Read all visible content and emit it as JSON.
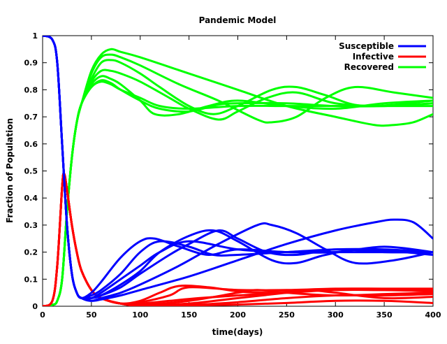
{
  "chart_data": {
    "type": "line",
    "title": "Pandemic Model",
    "xlabel": "time(days)",
    "ylabel": "Fraction of Population",
    "xlim": [
      0,
      400
    ],
    "ylim": [
      0,
      1
    ],
    "xticks": [
      0,
      50,
      100,
      150,
      200,
      250,
      300,
      350,
      400
    ],
    "yticks": [
      0,
      0.1,
      0.2,
      0.3,
      0.4,
      0.5,
      0.6,
      0.7,
      0.8,
      0.9,
      1
    ],
    "grid": false,
    "legend_position": "top-right",
    "legend": [
      {
        "label": "Susceptible",
        "color": "#0000ff"
      },
      {
        "label": "Infective",
        "color": "#ff0000"
      },
      {
        "label": "Recovered",
        "color": "#00ff00"
      }
    ],
    "series": [
      {
        "group": "Susceptible",
        "color": "#0000ff",
        "x": [
          0,
          10,
          15,
          20,
          25,
          30,
          35,
          40,
          50,
          60,
          80,
          100,
          120,
          150,
          200,
          250,
          300,
          350,
          400
        ],
        "y": [
          1.0,
          0.985,
          0.9,
          0.6,
          0.3,
          0.12,
          0.05,
          0.03,
          0.03,
          0.05,
          0.1,
          0.15,
          0.2,
          0.24,
          0.21,
          0.2,
          0.2,
          0.2,
          0.2
        ]
      },
      {
        "group": "Susceptible",
        "color": "#0000ff",
        "x": [
          0,
          10,
          15,
          20,
          25,
          30,
          35,
          40,
          50,
          60,
          80,
          100,
          120,
          150,
          175,
          200,
          250,
          300,
          350,
          400
        ],
        "y": [
          1.0,
          0.985,
          0.9,
          0.6,
          0.3,
          0.12,
          0.05,
          0.03,
          0.04,
          0.06,
          0.12,
          0.2,
          0.24,
          0.22,
          0.19,
          0.19,
          0.2,
          0.21,
          0.21,
          0.2
        ]
      },
      {
        "group": "Susceptible",
        "color": "#0000ff",
        "x": [
          0,
          10,
          15,
          20,
          25,
          30,
          35,
          40,
          50,
          60,
          80,
          100,
          115,
          140,
          170,
          200,
          250,
          300,
          350,
          400
        ],
        "y": [
          1.0,
          0.985,
          0.9,
          0.6,
          0.3,
          0.12,
          0.05,
          0.03,
          0.05,
          0.09,
          0.18,
          0.24,
          0.25,
          0.22,
          0.19,
          0.21,
          0.2,
          0.2,
          0.22,
          0.2
        ]
      },
      {
        "group": "Susceptible",
        "color": "#0000ff",
        "x": [
          0,
          10,
          15,
          20,
          25,
          30,
          35,
          40,
          50,
          60,
          80,
          100,
          130,
          150,
          180,
          200,
          230,
          260,
          300,
          350,
          400
        ],
        "y": [
          1.0,
          0.985,
          0.9,
          0.6,
          0.3,
          0.12,
          0.05,
          0.03,
          0.03,
          0.04,
          0.07,
          0.12,
          0.19,
          0.23,
          0.28,
          0.25,
          0.2,
          0.19,
          0.21,
          0.2,
          0.2
        ]
      },
      {
        "group": "Susceptible",
        "color": "#0000ff",
        "x": [
          0,
          10,
          15,
          20,
          25,
          30,
          35,
          40,
          50,
          60,
          80,
          100,
          120,
          150,
          175,
          200,
          235,
          260,
          290,
          330,
          400
        ],
        "y": [
          1.0,
          0.985,
          0.9,
          0.6,
          0.3,
          0.12,
          0.05,
          0.03,
          0.03,
          0.04,
          0.08,
          0.13,
          0.2,
          0.26,
          0.28,
          0.24,
          0.17,
          0.16,
          0.19,
          0.21,
          0.19
        ]
      },
      {
        "group": "Susceptible",
        "color": "#0000ff",
        "x": [
          0,
          10,
          15,
          20,
          25,
          30,
          35,
          40,
          50,
          60,
          80,
          100,
          140,
          180,
          220,
          235,
          260,
          290,
          320,
          360,
          400
        ],
        "y": [
          1.0,
          0.985,
          0.9,
          0.6,
          0.3,
          0.12,
          0.05,
          0.03,
          0.02,
          0.03,
          0.05,
          0.08,
          0.15,
          0.23,
          0.3,
          0.3,
          0.27,
          0.21,
          0.16,
          0.17,
          0.2
        ]
      },
      {
        "group": "Susceptible",
        "color": "#0000ff",
        "x": [
          0,
          10,
          15,
          20,
          25,
          30,
          35,
          40,
          50,
          60,
          80,
          100,
          150,
          200,
          250,
          300,
          340,
          360,
          380,
          400
        ],
        "y": [
          1.0,
          0.985,
          0.9,
          0.6,
          0.3,
          0.12,
          0.05,
          0.03,
          0.02,
          0.025,
          0.04,
          0.06,
          0.11,
          0.17,
          0.23,
          0.28,
          0.31,
          0.32,
          0.31,
          0.25
        ]
      },
      {
        "group": "Infective",
        "color": "#ff0000",
        "x": [
          0,
          10,
          15,
          20,
          22,
          25,
          30,
          35,
          40,
          50,
          60,
          80,
          100,
          130,
          160,
          200,
          250,
          300,
          350,
          400
        ],
        "y": [
          0.0,
          0.02,
          0.15,
          0.44,
          0.49,
          0.43,
          0.3,
          0.2,
          0.13,
          0.06,
          0.03,
          0.01,
          0.01,
          0.02,
          0.03,
          0.04,
          0.05,
          0.06,
          0.06,
          0.06
        ]
      },
      {
        "group": "Infective",
        "color": "#ff0000",
        "x": [
          0,
          10,
          15,
          20,
          22,
          25,
          30,
          35,
          40,
          50,
          60,
          80,
          100,
          130,
          150,
          200,
          250,
          300,
          350,
          400
        ],
        "y": [
          0.0,
          0.02,
          0.15,
          0.44,
          0.49,
          0.43,
          0.3,
          0.2,
          0.13,
          0.06,
          0.03,
          0.01,
          0.015,
          0.04,
          0.07,
          0.06,
          0.06,
          0.065,
          0.065,
          0.065
        ]
      },
      {
        "group": "Infective",
        "color": "#ff0000",
        "x": [
          0,
          10,
          15,
          20,
          22,
          25,
          30,
          35,
          40,
          50,
          60,
          80,
          100,
          120,
          140,
          170,
          200,
          230,
          260,
          300,
          350,
          400
        ],
        "y": [
          0.0,
          0.02,
          0.15,
          0.44,
          0.49,
          0.43,
          0.3,
          0.2,
          0.13,
          0.06,
          0.03,
          0.01,
          0.02,
          0.05,
          0.075,
          0.07,
          0.055,
          0.05,
          0.055,
          0.06,
          0.06,
          0.055
        ]
      },
      {
        "group": "Infective",
        "color": "#ff0000",
        "x": [
          0,
          10,
          15,
          20,
          22,
          25,
          30,
          35,
          40,
          50,
          60,
          80,
          100,
          150,
          200,
          220,
          250,
          300,
          350,
          400
        ],
        "y": [
          0.0,
          0.02,
          0.15,
          0.44,
          0.49,
          0.43,
          0.3,
          0.2,
          0.13,
          0.06,
          0.03,
          0.01,
          0.005,
          0.02,
          0.05,
          0.06,
          0.05,
          0.04,
          0.045,
          0.05
        ]
      },
      {
        "group": "Infective",
        "color": "#ff0000",
        "x": [
          0,
          10,
          15,
          20,
          22,
          25,
          30,
          35,
          40,
          50,
          60,
          80,
          100,
          150,
          200,
          250,
          270,
          300,
          350,
          400
        ],
        "y": [
          0.0,
          0.02,
          0.15,
          0.44,
          0.49,
          0.43,
          0.3,
          0.2,
          0.13,
          0.06,
          0.03,
          0.01,
          0.004,
          0.01,
          0.03,
          0.05,
          0.06,
          0.05,
          0.03,
          0.035
        ]
      },
      {
        "group": "Infective",
        "color": "#ff0000",
        "x": [
          0,
          10,
          15,
          20,
          22,
          25,
          30,
          35,
          40,
          50,
          60,
          80,
          100,
          150,
          200,
          250,
          300,
          350,
          400
        ],
        "y": [
          0.0,
          0.02,
          0.15,
          0.44,
          0.49,
          0.43,
          0.3,
          0.2,
          0.13,
          0.06,
          0.03,
          0.01,
          0.003,
          0.005,
          0.015,
          0.03,
          0.04,
          0.04,
          0.045
        ]
      },
      {
        "group": "Infective",
        "color": "#ff0000",
        "x": [
          0,
          10,
          15,
          20,
          22,
          25,
          30,
          35,
          40,
          50,
          60,
          80,
          100,
          150,
          200,
          250,
          300,
          350,
          400
        ],
        "y": [
          0.0,
          0.02,
          0.15,
          0.44,
          0.49,
          0.43,
          0.3,
          0.2,
          0.13,
          0.06,
          0.03,
          0.01,
          0.002,
          0.003,
          0.006,
          0.012,
          0.02,
          0.02,
          0.012
        ]
      },
      {
        "group": "Recovered",
        "color": "#00ff00",
        "x": [
          0,
          10,
          15,
          20,
          25,
          30,
          35,
          40,
          50,
          60,
          70,
          80,
          100,
          120,
          150,
          200,
          250,
          300,
          350,
          400
        ],
        "y": [
          0.0,
          0.005,
          0.02,
          0.1,
          0.35,
          0.55,
          0.68,
          0.75,
          0.81,
          0.83,
          0.82,
          0.8,
          0.77,
          0.74,
          0.73,
          0.74,
          0.74,
          0.74,
          0.74,
          0.74
        ]
      },
      {
        "group": "Recovered",
        "color": "#00ff00",
        "x": [
          0,
          10,
          15,
          20,
          25,
          30,
          35,
          40,
          50,
          60,
          70,
          80,
          100,
          120,
          150,
          180,
          200,
          250,
          300,
          350,
          400
        ],
        "y": [
          0.0,
          0.005,
          0.02,
          0.1,
          0.35,
          0.55,
          0.68,
          0.75,
          0.81,
          0.835,
          0.825,
          0.8,
          0.76,
          0.73,
          0.72,
          0.745,
          0.75,
          0.75,
          0.74,
          0.74,
          0.75
        ]
      },
      {
        "group": "Recovered",
        "color": "#00ff00",
        "x": [
          0,
          10,
          15,
          20,
          25,
          30,
          35,
          40,
          50,
          60,
          70,
          80,
          100,
          115,
          140,
          170,
          200,
          250,
          300,
          350,
          400
        ],
        "y": [
          0.0,
          0.005,
          0.02,
          0.1,
          0.35,
          0.55,
          0.68,
          0.75,
          0.82,
          0.85,
          0.84,
          0.82,
          0.76,
          0.71,
          0.71,
          0.74,
          0.76,
          0.74,
          0.73,
          0.75,
          0.76
        ]
      },
      {
        "group": "Recovered",
        "color": "#00ff00",
        "x": [
          0,
          10,
          15,
          20,
          25,
          30,
          35,
          40,
          50,
          60,
          70,
          80,
          100,
          130,
          150,
          180,
          200,
          230,
          260,
          300,
          350,
          400
        ],
        "y": [
          0.0,
          0.005,
          0.02,
          0.1,
          0.35,
          0.55,
          0.68,
          0.75,
          0.83,
          0.87,
          0.87,
          0.86,
          0.83,
          0.77,
          0.73,
          0.69,
          0.72,
          0.77,
          0.79,
          0.75,
          0.74,
          0.75
        ]
      },
      {
        "group": "Recovered",
        "color": "#00ff00",
        "x": [
          0,
          10,
          15,
          20,
          25,
          30,
          35,
          40,
          50,
          60,
          70,
          80,
          100,
          120,
          150,
          175,
          200,
          235,
          260,
          290,
          330,
          400
        ],
        "y": [
          0.0,
          0.005,
          0.02,
          0.1,
          0.35,
          0.55,
          0.68,
          0.75,
          0.84,
          0.9,
          0.91,
          0.9,
          0.86,
          0.81,
          0.74,
          0.71,
          0.74,
          0.8,
          0.81,
          0.78,
          0.74,
          0.76
        ]
      },
      {
        "group": "Recovered",
        "color": "#00ff00",
        "x": [
          0,
          10,
          15,
          20,
          25,
          30,
          35,
          40,
          50,
          60,
          70,
          80,
          100,
          140,
          180,
          220,
          235,
          260,
          290,
          320,
          360,
          400
        ],
        "y": [
          0.0,
          0.005,
          0.02,
          0.1,
          0.35,
          0.55,
          0.68,
          0.75,
          0.86,
          0.92,
          0.93,
          0.92,
          0.89,
          0.82,
          0.76,
          0.69,
          0.68,
          0.7,
          0.77,
          0.81,
          0.79,
          0.77
        ]
      },
      {
        "group": "Recovered",
        "color": "#00ff00",
        "x": [
          0,
          10,
          15,
          20,
          25,
          30,
          35,
          40,
          50,
          60,
          70,
          80,
          100,
          150,
          200,
          250,
          300,
          340,
          360,
          380,
          400
        ],
        "y": [
          0.0,
          0.005,
          0.02,
          0.1,
          0.35,
          0.55,
          0.68,
          0.75,
          0.87,
          0.93,
          0.95,
          0.94,
          0.92,
          0.86,
          0.8,
          0.74,
          0.7,
          0.67,
          0.67,
          0.68,
          0.71
        ]
      }
    ]
  }
}
